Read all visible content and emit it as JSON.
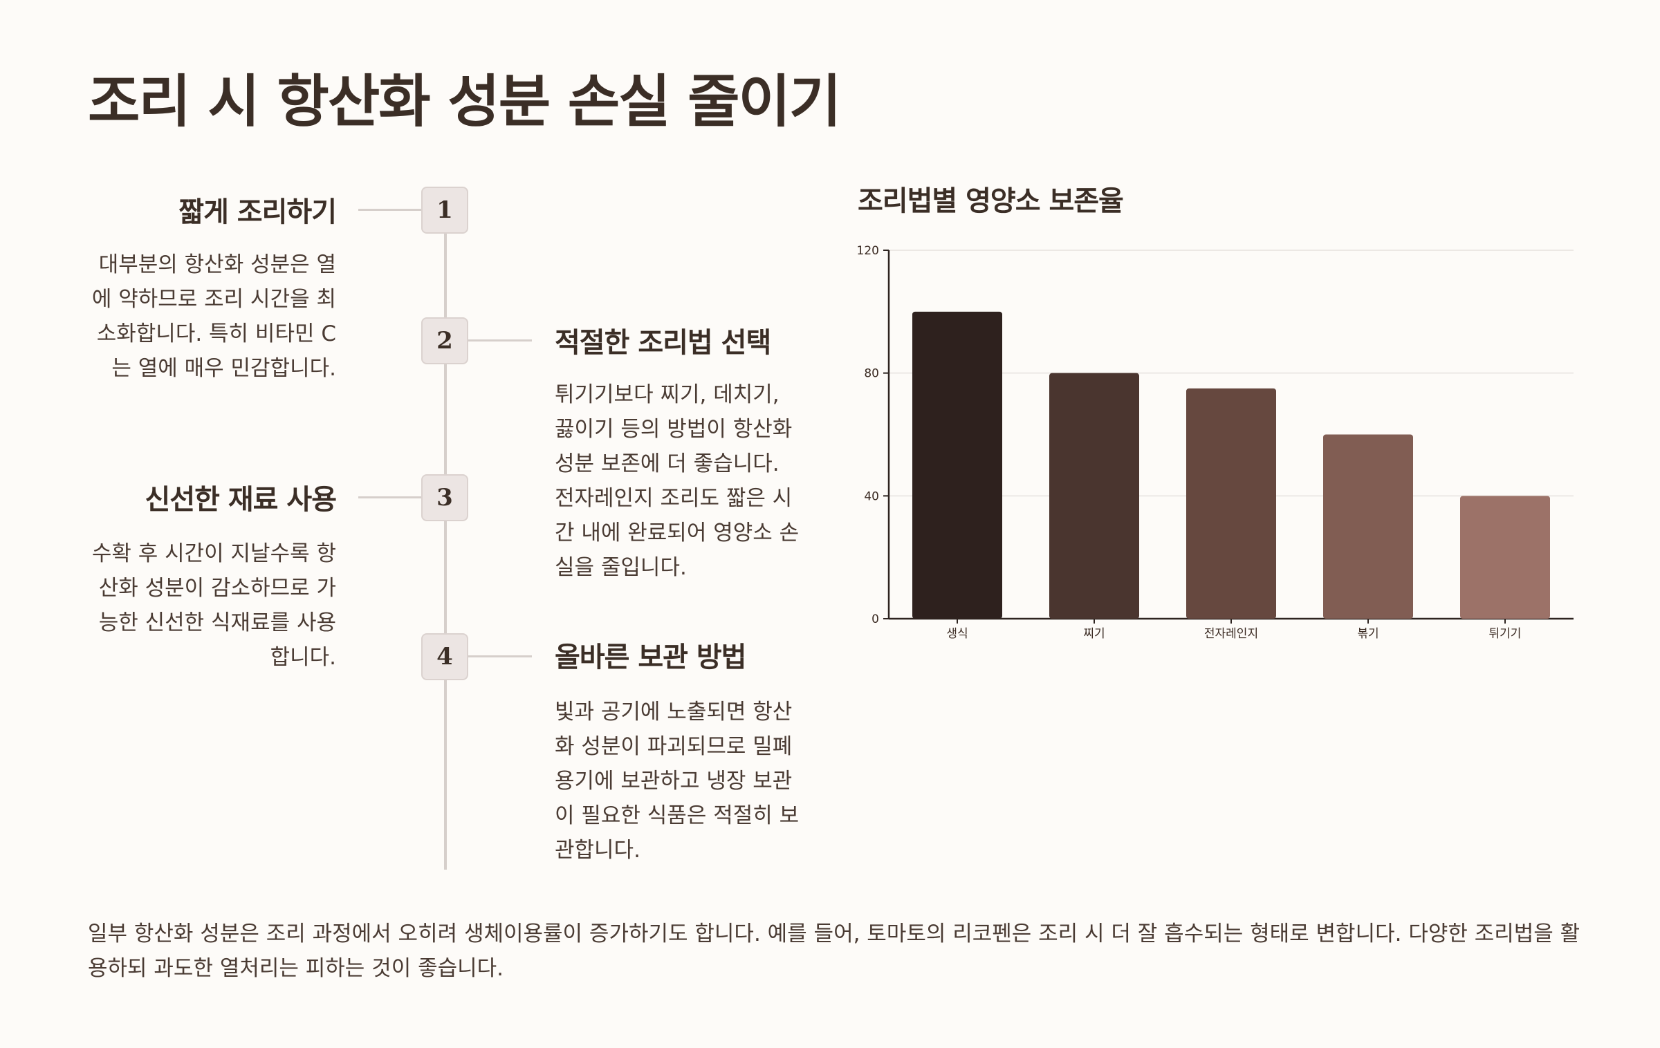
{
  "title": "조리 시 항산화 성분 손실 줄이기",
  "steps": [
    {
      "number": "1",
      "title": "짧게 조리하기",
      "desc": "대부분의 항산화 성분은 열에 약하므로 조리 시간을 최소화합니다. 특히 비타민 C는 열에 매우 민감합니다."
    },
    {
      "number": "2",
      "title": "적절한 조리법 선택",
      "desc": "튀기기보다 찌기, 데치기, 끓이기 등의 방법이 항산화 성분 보존에 더 좋습니다. 전자레인지 조리도 짧은 시간 내에 완료되어 영양소 손실을 줄입니다."
    },
    {
      "number": "3",
      "title": "신선한 재료 사용",
      "desc": "수확 후 시간이 지날수록 항산화 성분이 감소하므로 가능한 신선한 식재료를 사용합니다."
    },
    {
      "number": "4",
      "title": "올바른 보관 방법",
      "desc": "빛과 공기에 노출되면 항산화 성분이 파괴되므로 밀폐용기에 보관하고 냉장 보관이 필요한 식품은 적절히 보관합니다."
    }
  ],
  "footer": "일부 항산화 성분은 조리 과정에서 오히려 생체이용률이 증가하기도 합니다. 예를 들어, 토마토의 리코펜은 조리 시 더 잘 흡수되는 형태로 변합니다. 다양한 조리법을 활용하되 과도한 열처리는 피하는 것이 좋습니다.",
  "chart_data": {
    "type": "bar",
    "title": "조리법별 영양소 보존율",
    "categories": [
      "생식",
      "찌기",
      "전자레인지",
      "볶기",
      "튀기기"
    ],
    "values": [
      100,
      80,
      75,
      60,
      40
    ],
    "ylim": [
      0,
      120
    ],
    "yticks": [
      "0",
      "40",
      "80",
      "120"
    ],
    "grid": true,
    "colors": [
      "#2e211e",
      "#4a352f",
      "#66483f",
      "#815d53",
      "#9c7268"
    ]
  }
}
